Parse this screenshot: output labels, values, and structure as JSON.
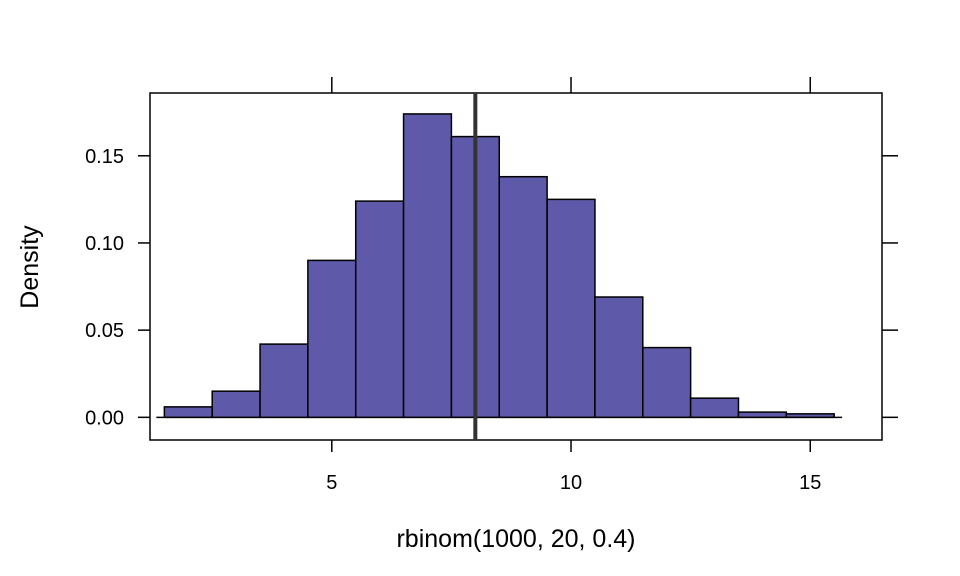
{
  "chart_data": {
    "type": "bar",
    "subtype": "histogram",
    "xlabel": "rbinom(1000, 20, 0.4)",
    "ylabel": "Density",
    "xlim": [
      1.2,
      16.5
    ],
    "ylim": [
      -0.013,
      0.186
    ],
    "x_ticks": [
      5,
      10,
      15
    ],
    "x_tick_labels": [
      "5",
      "10",
      "15"
    ],
    "y_ticks": [
      0.0,
      0.05,
      0.1,
      0.15
    ],
    "y_tick_labels": [
      "0.00",
      "0.05",
      "0.10",
      "0.15"
    ],
    "bin_edges": [
      1.5,
      2.5,
      3.5,
      4.5,
      5.5,
      6.5,
      7.5,
      8.5,
      9.5,
      10.5,
      11.5,
      12.5,
      13.5,
      14.5,
      15.5
    ],
    "values": [
      0.006,
      0.015,
      0.042,
      0.09,
      0.124,
      0.174,
      0.161,
      0.138,
      0.125,
      0.069,
      0.04,
      0.011,
      0.003,
      0.002
    ],
    "reference_line_x": 8,
    "bar_color": "#5e5aa9",
    "bar_edge_color": "#000000",
    "reference_line_color": "#333333",
    "grid": false
  }
}
